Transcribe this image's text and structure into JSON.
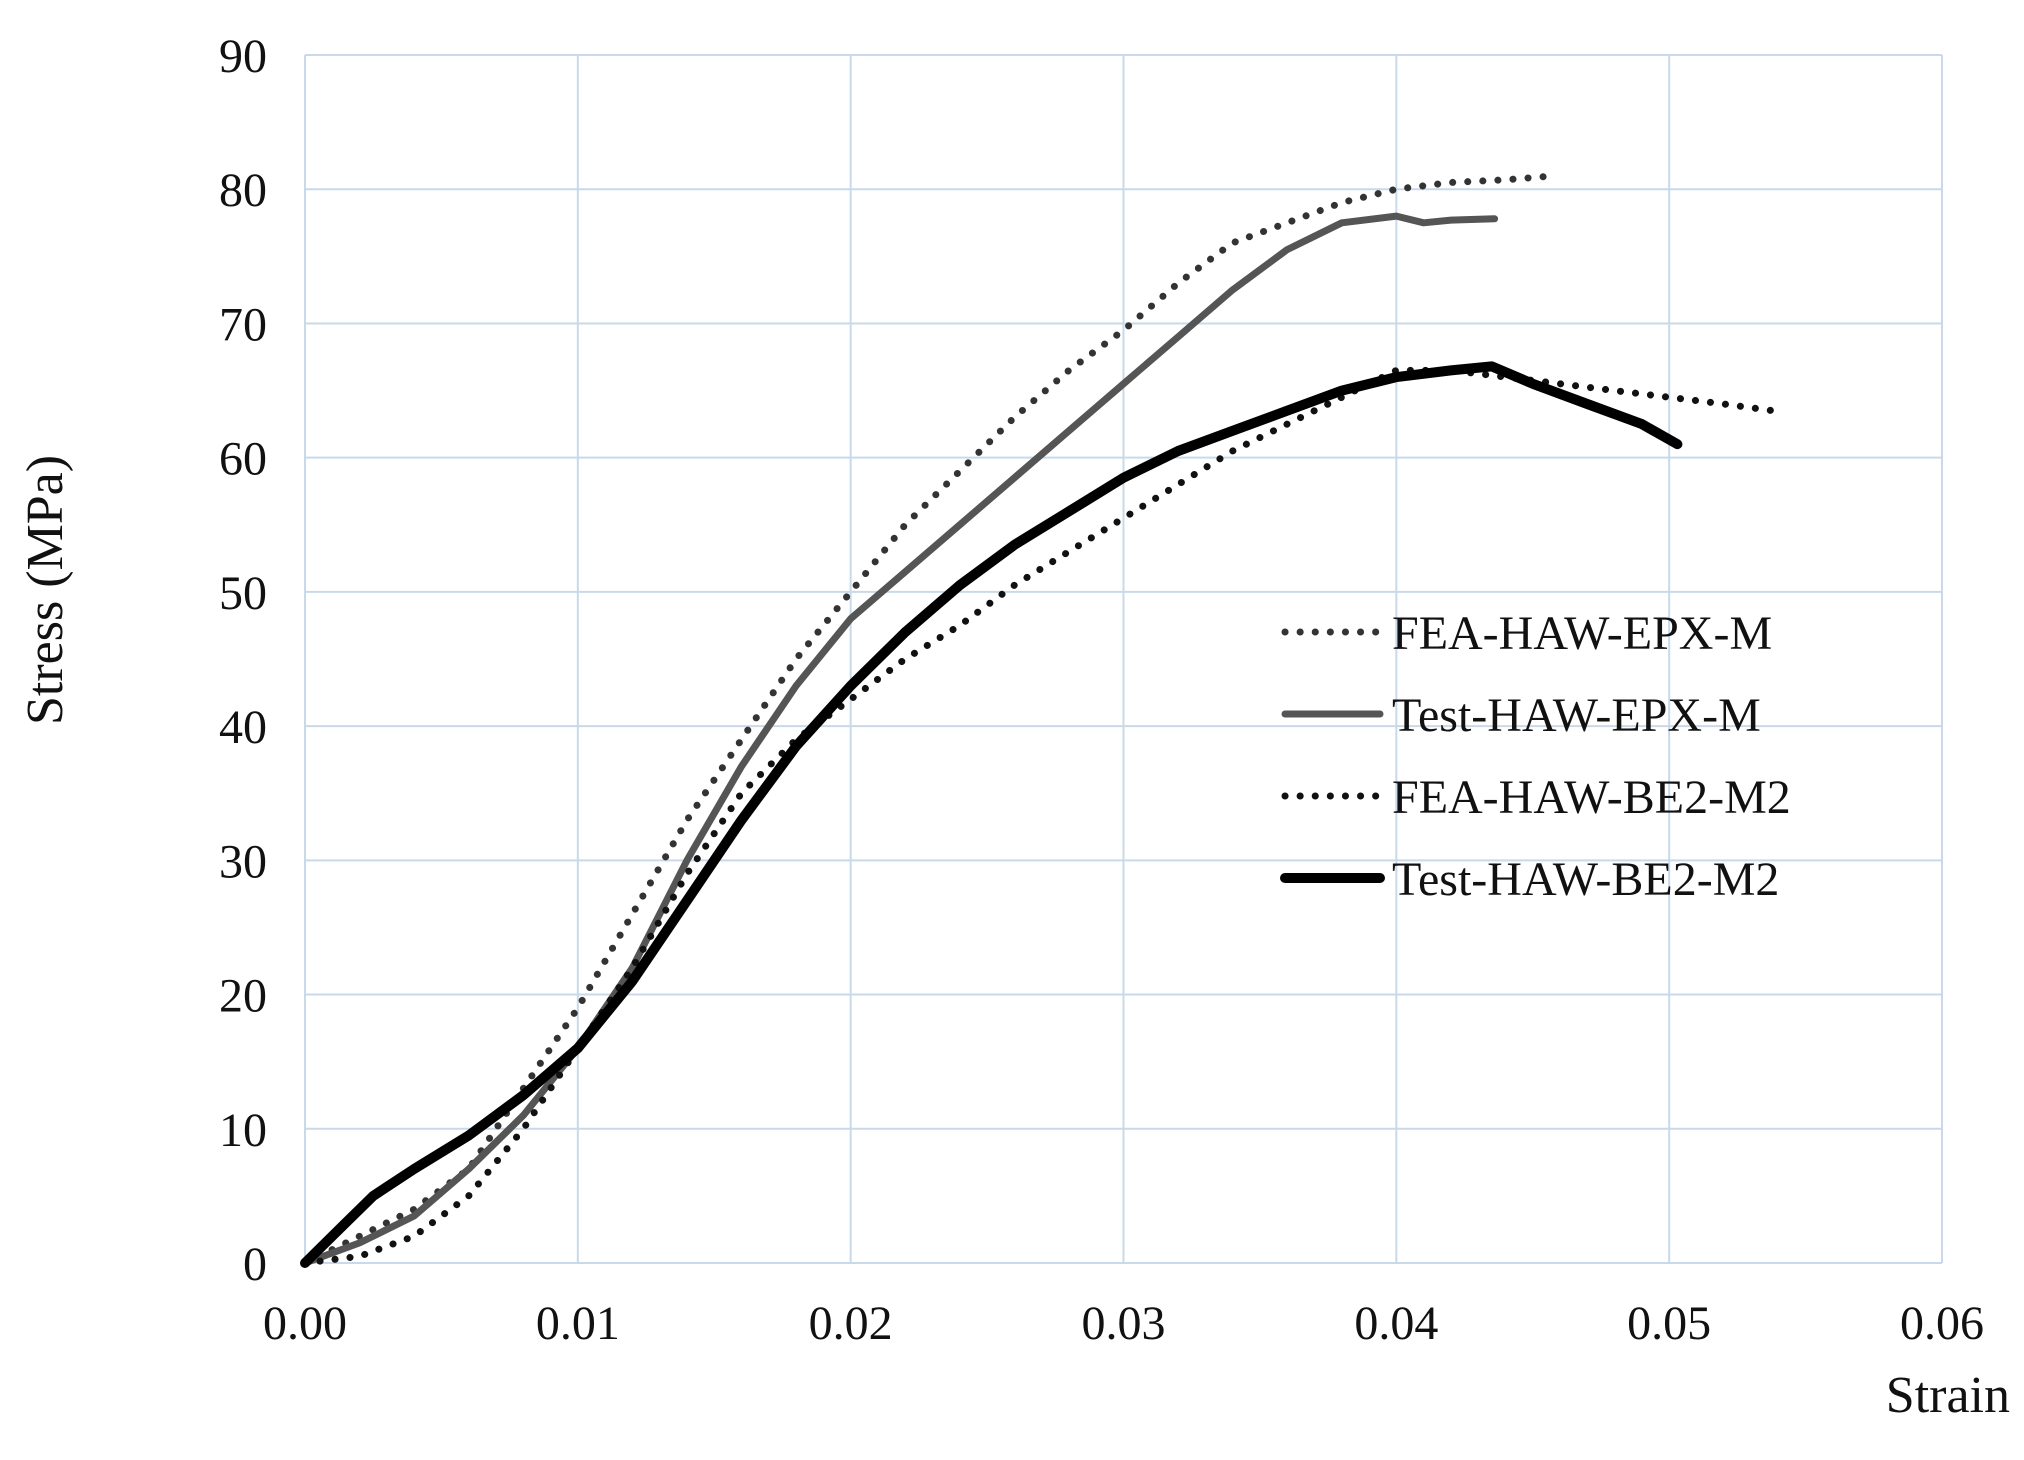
{
  "chart_data": {
    "type": "line",
    "xlabel": "Strain",
    "ylabel": "Stress  (MPa)",
    "xlim": [
      0,
      0.06
    ],
    "ylim": [
      0,
      90
    ],
    "xticks": [
      "0.00",
      "0.01",
      "0.02",
      "0.03",
      "0.04",
      "0.05",
      "0.06"
    ],
    "yticks": [
      "0",
      "10",
      "20",
      "30",
      "40",
      "50",
      "60",
      "70",
      "80",
      "90"
    ],
    "grid": true,
    "legend_position": "right",
    "series": [
      {
        "name": "FEA-HAW-EPX-M",
        "style": "dotted",
        "color": "#333333",
        "x": [
          0,
          0.002,
          0.004,
          0.006,
          0.008,
          0.01,
          0.012,
          0.014,
          0.016,
          0.018,
          0.02,
          0.022,
          0.024,
          0.026,
          0.028,
          0.03,
          0.032,
          0.034,
          0.036,
          0.038,
          0.04,
          0.042,
          0.044,
          0.0458
        ],
        "y": [
          0,
          2,
          4,
          7,
          13,
          19,
          26,
          33,
          39,
          45,
          50,
          55,
          59,
          63,
          66.5,
          69.5,
          73,
          76,
          77.5,
          79,
          80,
          80.5,
          80.7,
          81
        ]
      },
      {
        "name": "Test-HAW-EPX-M",
        "style": "solid",
        "color": "#555555",
        "x": [
          0,
          0.002,
          0.004,
          0.006,
          0.008,
          0.01,
          0.012,
          0.014,
          0.016,
          0.018,
          0.02,
          0.022,
          0.024,
          0.026,
          0.028,
          0.03,
          0.032,
          0.034,
          0.036,
          0.038,
          0.04,
          0.041,
          0.042,
          0.0436
        ],
        "y": [
          0,
          1.5,
          3.5,
          7,
          11,
          16,
          22,
          30,
          37,
          43,
          48,
          51.5,
          55,
          58.5,
          62,
          65.5,
          69,
          72.5,
          75.5,
          77.5,
          78,
          77.5,
          77.7,
          77.8
        ]
      },
      {
        "name": "FEA-HAW-BE2-M2",
        "style": "dotted",
        "color": "#111111",
        "x": [
          0,
          0.002,
          0.004,
          0.006,
          0.008,
          0.01,
          0.012,
          0.014,
          0.016,
          0.018,
          0.02,
          0.022,
          0.024,
          0.026,
          0.028,
          0.03,
          0.032,
          0.034,
          0.036,
          0.038,
          0.04,
          0.042,
          0.044,
          0.046,
          0.048,
          0.05,
          0.052,
          0.0538
        ],
        "y": [
          0,
          0.5,
          2,
          5,
          10,
          16,
          22,
          29,
          35,
          39,
          42,
          45,
          47.5,
          50.5,
          53,
          55.5,
          58,
          60.5,
          62.5,
          64.5,
          66.5,
          66.5,
          66,
          65.5,
          65,
          64.5,
          64,
          63.5
        ]
      },
      {
        "name": "Test-HAW-BE2-M2",
        "style": "solid",
        "color": "#000000",
        "x": [
          0,
          0.0015,
          0.0025,
          0.004,
          0.006,
          0.008,
          0.01,
          0.012,
          0.014,
          0.016,
          0.018,
          0.02,
          0.022,
          0.024,
          0.026,
          0.028,
          0.03,
          0.032,
          0.034,
          0.036,
          0.038,
          0.04,
          0.042,
          0.0435,
          0.045,
          0.047,
          0.049,
          0.0503
        ],
        "y": [
          0,
          3,
          5,
          7,
          9.5,
          12.5,
          16,
          21,
          27,
          33,
          38.5,
          43,
          47,
          50.5,
          53.5,
          56,
          58.5,
          60.5,
          62,
          63.5,
          65,
          66,
          66.5,
          66.8,
          65.5,
          64,
          62.5,
          61
        ]
      }
    ]
  }
}
